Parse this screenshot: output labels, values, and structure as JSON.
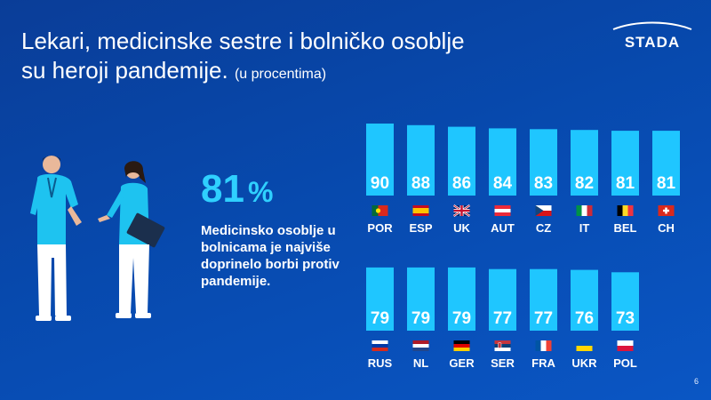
{
  "title": {
    "line1": "Lekari, medicinske sestre i bolničko osoblje",
    "line2": "su heroji pandemije.",
    "unit": "(u procentima)"
  },
  "logo": {
    "text": "STADA"
  },
  "highlight": {
    "value": "81",
    "unit": "%",
    "description": "Medicinsko osoblje u bolnicama je najviše doprinelo borbi protiv pandemije."
  },
  "page_number": "6",
  "colors": {
    "background": "#0a4aad",
    "bar": "#1fc6ff",
    "accent": "#2fd0ff"
  },
  "chart_data": {
    "type": "bar",
    "title": "",
    "xlabel": "",
    "ylabel": "",
    "ylim": [
      0,
      100
    ],
    "rows": [
      {
        "categories": [
          "POR",
          "ESP",
          "UK",
          "AUT",
          "CZ",
          "IT",
          "BEL",
          "CH"
        ],
        "values": [
          90,
          88,
          86,
          84,
          83,
          82,
          81,
          81
        ],
        "flags": [
          "flag-portugal-icon",
          "flag-spain-icon",
          "flag-uk-icon",
          "flag-austria-icon",
          "flag-czechia-icon",
          "flag-italy-icon",
          "flag-belgium-icon",
          "flag-switzerland-icon"
        ]
      },
      {
        "categories": [
          "RUS",
          "NL",
          "GER",
          "SER",
          "FRA",
          "UKR",
          "POL"
        ],
        "values": [
          79,
          79,
          79,
          77,
          77,
          76,
          73
        ],
        "flags": [
          "flag-russia-icon",
          "flag-netherlands-icon",
          "flag-germany-icon",
          "flag-serbia-icon",
          "flag-france-icon",
          "flag-ukraine-icon",
          "flag-poland-icon"
        ]
      }
    ]
  }
}
